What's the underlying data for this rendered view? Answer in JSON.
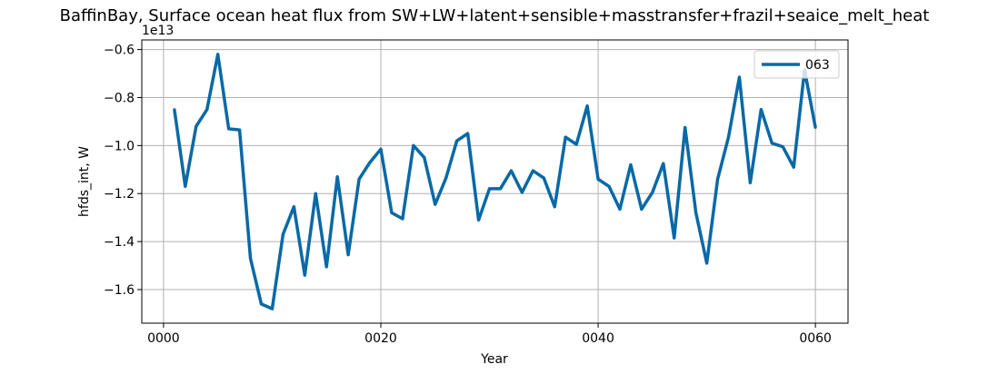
{
  "chart_data": {
    "type": "line",
    "title": "BaffinBay, Surface ocean heat flux from SW+LW+latent+sensible+masstransfer+frazil+seaice_melt_heat",
    "xlabel": "Year",
    "ylabel": "hfds_int, W",
    "y_offset_label": "1e13",
    "y_scale_factor": 10000000000000.0,
    "xlim": [
      -2,
      63
    ],
    "ylim": [
      -1.74,
      -0.56
    ],
    "x_ticks": [
      0,
      20,
      40,
      60
    ],
    "x_tick_labels": [
      "0000",
      "0020",
      "0040",
      "0060"
    ],
    "y_ticks": [
      -1.6,
      -1.4,
      -1.2,
      -1.0,
      -0.8,
      -0.6
    ],
    "y_tick_labels": [
      "−1.6",
      "−1.4",
      "−1.2",
      "−1.0",
      "−0.8",
      "−0.6"
    ],
    "grid": true,
    "legend_position": "top-right",
    "series": [
      {
        "name": "063",
        "color": "#0869a6",
        "x": [
          1,
          2,
          3,
          4,
          5,
          6,
          7,
          8,
          9,
          10,
          11,
          12,
          13,
          14,
          15,
          16,
          17,
          18,
          19,
          20,
          21,
          22,
          23,
          24,
          25,
          26,
          27,
          28,
          29,
          30,
          31,
          32,
          33,
          34,
          35,
          36,
          37,
          38,
          39,
          40,
          41,
          42,
          43,
          44,
          45,
          46,
          47,
          48,
          49,
          50,
          51,
          52,
          53,
          54,
          55,
          56,
          57,
          58,
          59,
          60
        ],
        "y": [
          -0.85,
          -1.17,
          -0.92,
          -0.85,
          -0.62,
          -0.93,
          -0.935,
          -1.47,
          -1.66,
          -1.68,
          -1.37,
          -1.255,
          -1.54,
          -1.2,
          -1.505,
          -1.13,
          -1.455,
          -1.14,
          -1.07,
          -1.015,
          -1.28,
          -1.305,
          -1.0,
          -1.05,
          -1.245,
          -1.135,
          -0.98,
          -0.95,
          -1.31,
          -1.18,
          -1.18,
          -1.105,
          -1.195,
          -1.105,
          -1.135,
          -1.255,
          -0.965,
          -0.995,
          -0.835,
          -1.14,
          -1.17,
          -1.265,
          -1.08,
          -1.265,
          -1.195,
          -1.075,
          -1.385,
          -0.925,
          -1.28,
          -1.49,
          -1.14,
          -0.965,
          -0.715,
          -1.155,
          -0.85,
          -0.99,
          -1.005,
          -1.09,
          -0.685,
          -0.925
        ]
      }
    ]
  }
}
